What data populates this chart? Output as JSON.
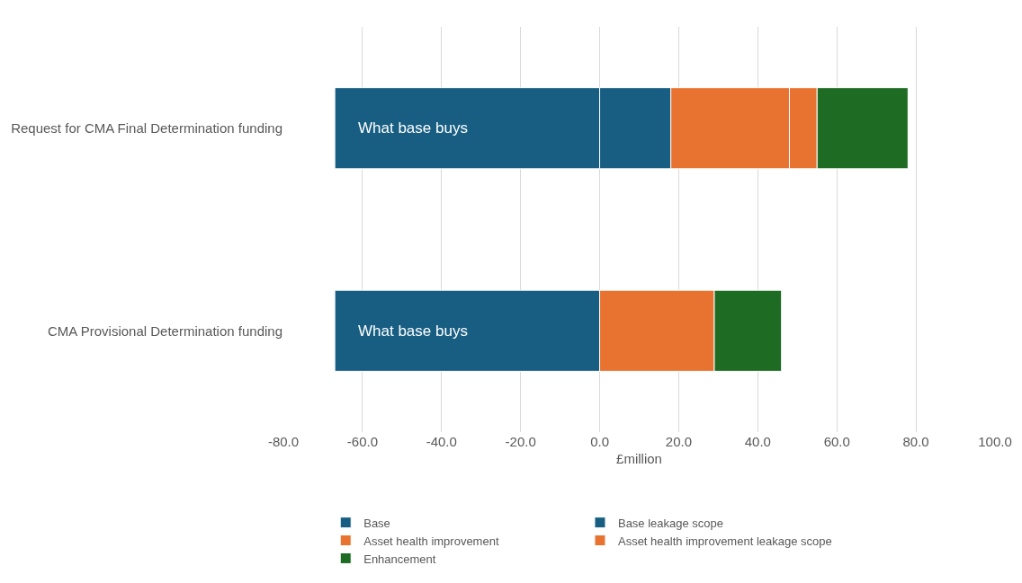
{
  "chart_data": {
    "type": "bar",
    "orientation": "horizontal",
    "stacked": true,
    "xlabel": "£million",
    "categories": [
      "Request for CMA Final Determination funding",
      "CMA Provisional Determination funding"
    ],
    "series": [
      {
        "name": "Base",
        "color": "#175e82",
        "values": [
          -67,
          -67
        ]
      },
      {
        "name": "Base leakage scope",
        "color": "#175e82",
        "values": [
          18,
          null
        ]
      },
      {
        "name": "Asset health improvement",
        "color": "#e87331",
        "values": [
          30,
          29
        ]
      },
      {
        "name": "Asset health improvement leakage scope",
        "color": "#e87331",
        "values": [
          7,
          null
        ]
      },
      {
        "name": "Enhancement",
        "color": "#1e6b23",
        "values": [
          23,
          17
        ]
      }
    ],
    "xlim": [
      -80,
      100
    ],
    "xticks": [
      {
        "value": -80,
        "label": "-80.0"
      },
      {
        "value": -60,
        "label": "-60.0"
      },
      {
        "value": -40,
        "label": "-40.0"
      },
      {
        "value": -20,
        "label": "-20.0"
      },
      {
        "value": 0,
        "label": "0.0"
      },
      {
        "value": 20,
        "label": "20.0"
      },
      {
        "value": 40,
        "label": "40.0"
      },
      {
        "value": 60,
        "label": "60.0"
      },
      {
        "value": 80,
        "label": "80.0"
      },
      {
        "value": 100,
        "label": "100.0"
      }
    ],
    "annotations": [
      "What base buys",
      "What base buys"
    ],
    "grid": "x",
    "legend": "bottom"
  }
}
